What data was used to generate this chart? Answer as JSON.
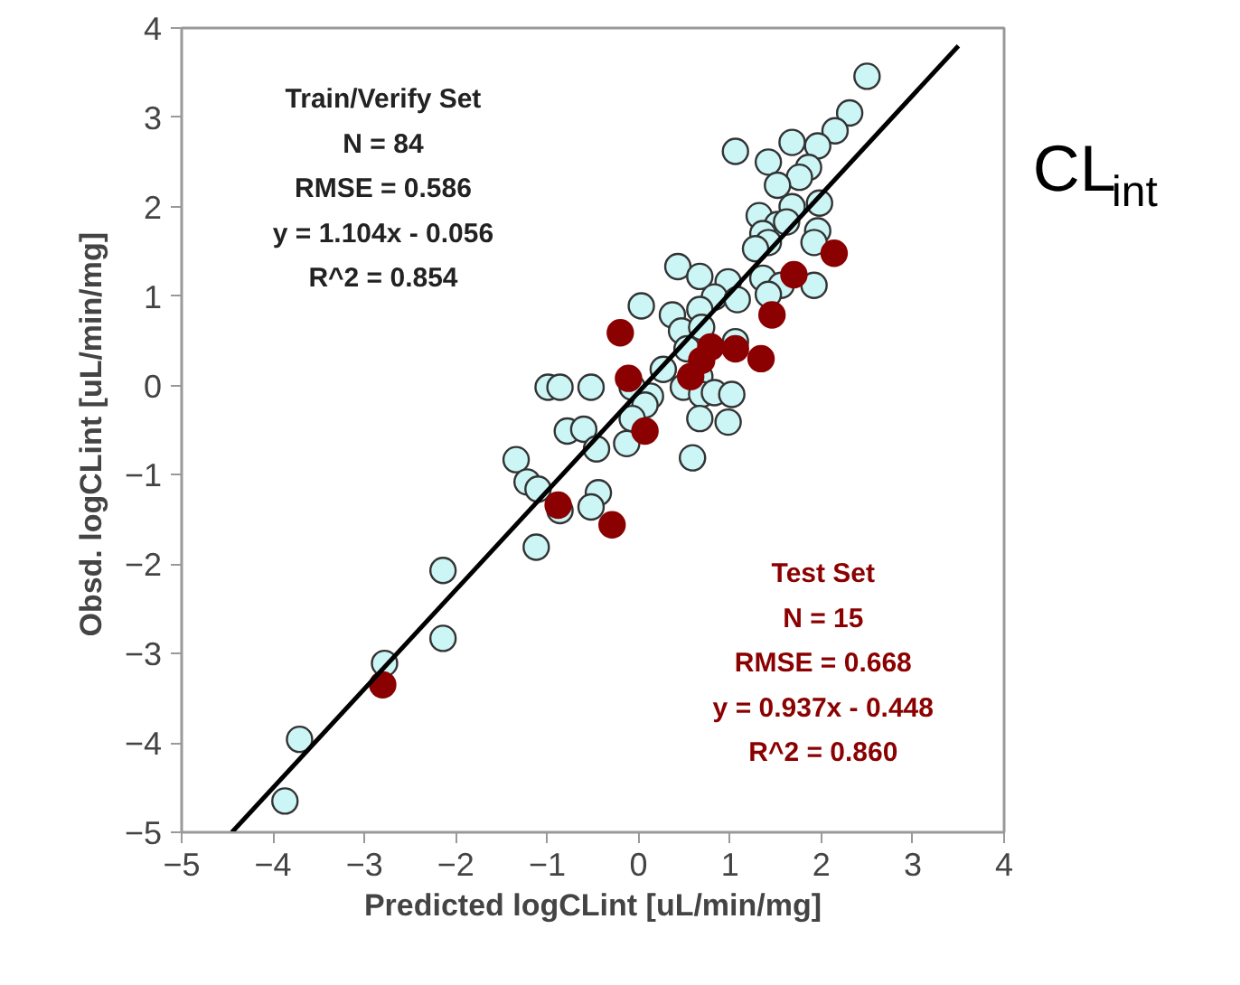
{
  "chart_data": {
    "type": "scatter",
    "xlabel": "Predicted logCLint [uL/min/mg]",
    "ylabel": "Obsd. logCLint  [uL/min/mg]",
    "xlim": [
      -5,
      4
    ],
    "ylim": [
      -5,
      4
    ],
    "xticks": [
      -5,
      -4,
      -3,
      -2,
      -1,
      0,
      1,
      2,
      3,
      4
    ],
    "yticks": [
      -5,
      -4,
      -3,
      -2,
      -1,
      0,
      1,
      2,
      3,
      4
    ],
    "grid": false,
    "marker": "circle",
    "annotations": [
      "Train/Verify Set\nN = 84\nRMSE = 0.586\ny = 1.104x - 0.056\nR^2 = 0.854",
      "Test Set\nN = 15\nRMSE = 0.668\ny = 0.937x - 0.448\nR^2 = 0.860",
      "CL$_{int}$"
    ],
    "series": [
      {
        "color": "#ccf5f5",
        "x": [
          2.5,
          2.31,
          2.15,
          1.96,
          1.68,
          1.06,
          1.42,
          1.86,
          1.76,
          1.52,
          1.98,
          1.68,
          1.32,
          1.52,
          1.62,
          1.36,
          1.96,
          1.92,
          1.42,
          1.28,
          0.43,
          0.67,
          0.98,
          1.36,
          1.56,
          1.92,
          0.83,
          1.08,
          1.42,
          0.03,
          0.37,
          0.67,
          0.47,
          0.69,
          0.53,
          0.27,
          0.67,
          1.06,
          -0.99,
          -0.86,
          -0.52,
          -0.07,
          0.13,
          0.49,
          0.69,
          0.83,
          1.02,
          0.07,
          0.67,
          0.98,
          -0.07,
          -0.78,
          -0.6,
          -0.46,
          -0.13,
          0.59,
          -1.34,
          -1.22,
          -1.1,
          -0.44,
          -0.52,
          -0.86,
          -1.12,
          -2.14,
          -2.14,
          -2.78,
          -3.71,
          -3.87
        ],
        "values": [
          3.46,
          3.05,
          2.85,
          2.68,
          2.72,
          2.62,
          2.5,
          2.44,
          2.33,
          2.24,
          2.04,
          2.0,
          1.9,
          1.8,
          1.83,
          1.7,
          1.73,
          1.6,
          1.6,
          1.53,
          1.33,
          1.22,
          1.16,
          1.2,
          1.12,
          1.12,
          0.99,
          0.96,
          1.02,
          0.89,
          0.79,
          0.85,
          0.61,
          0.65,
          0.41,
          0.18,
          0.1,
          0.49,
          -0.02,
          -0.02,
          -0.02,
          -0.02,
          -0.12,
          -0.02,
          -0.1,
          -0.08,
          -0.1,
          -0.22,
          -0.37,
          -0.41,
          -0.37,
          -0.51,
          -0.49,
          -0.71,
          -0.65,
          -0.81,
          -0.83,
          -1.08,
          -1.16,
          -1.2,
          -1.36,
          -1.4,
          -1.81,
          -2.07,
          -2.83,
          -3.11,
          -3.96,
          -4.65
        ]
      },
      {
        "color": "#8b0000",
        "x": [
          2.14,
          1.7,
          1.46,
          -0.2,
          0.79,
          1.06,
          1.34,
          0.69,
          0.57,
          -0.11,
          0.07,
          -0.88,
          -0.29,
          -2.8
        ],
        "values": [
          1.48,
          1.24,
          0.79,
          0.59,
          0.43,
          0.41,
          0.3,
          0.28,
          0.1,
          0.08,
          -0.51,
          -1.34,
          -1.56,
          -3.35
        ]
      },
      {
        "type": "line",
        "marker": "none",
        "color": "#000000",
        "x": [
          -4.45,
          3.5
        ],
        "values": [
          -5,
          3.8
        ]
      }
    ]
  }
}
